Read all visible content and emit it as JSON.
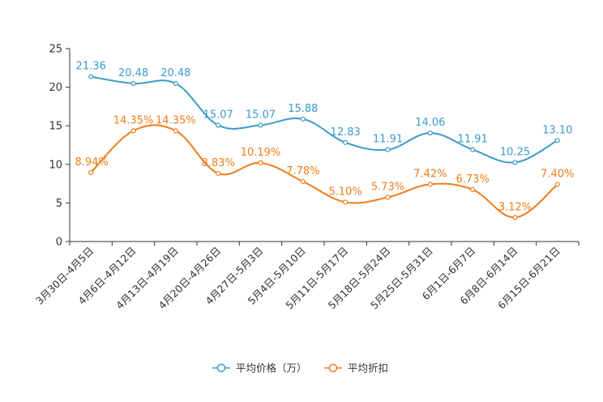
{
  "chart_data": {
    "type": "line",
    "categories": [
      "3月30日-4月5日",
      "4月6日-4月12日",
      "4月13日-4月19日",
      "4月20日-4月26日",
      "4月27日-5月3日",
      "5月4日-5月10日",
      "5月11日-5月17日",
      "5月18日-5月24日",
      "5月25日-5月31日",
      "6月1日-6月7日",
      "6月8日-6月14日",
      "6月15日-6月21日"
    ],
    "ylim": [
      0,
      25
    ],
    "yticks": [
      0,
      5,
      10,
      15,
      20,
      25
    ],
    "series": [
      {
        "name": "平均价格（万）",
        "color": "#3a9ac9",
        "values": [
          21.36,
          20.48,
          20.48,
          15.07,
          15.07,
          15.88,
          12.83,
          11.91,
          14.06,
          11.91,
          10.25,
          13.1
        ],
        "labels": [
          "21.36",
          "20.48",
          "20.48",
          "15.07",
          "15.07",
          "15.88",
          "12.83",
          "11.91",
          "14.06",
          "11.91",
          "10.25",
          "13.10"
        ]
      },
      {
        "name": "平均折扣",
        "color": "#f07c1a",
        "values": [
          8.94,
          14.35,
          14.35,
          8.83,
          10.19,
          7.78,
          5.1,
          5.73,
          7.42,
          6.73,
          3.12,
          7.4
        ],
        "labels": [
          "8.94%",
          "14.35%",
          "14.35%",
          "8.83%",
          "10.19%",
          "7.78%",
          "5.10%",
          "5.73%",
          "7.42%",
          "6.73%",
          "3.12%",
          "7.40%"
        ]
      }
    ],
    "legend_position": "bottom-center"
  }
}
